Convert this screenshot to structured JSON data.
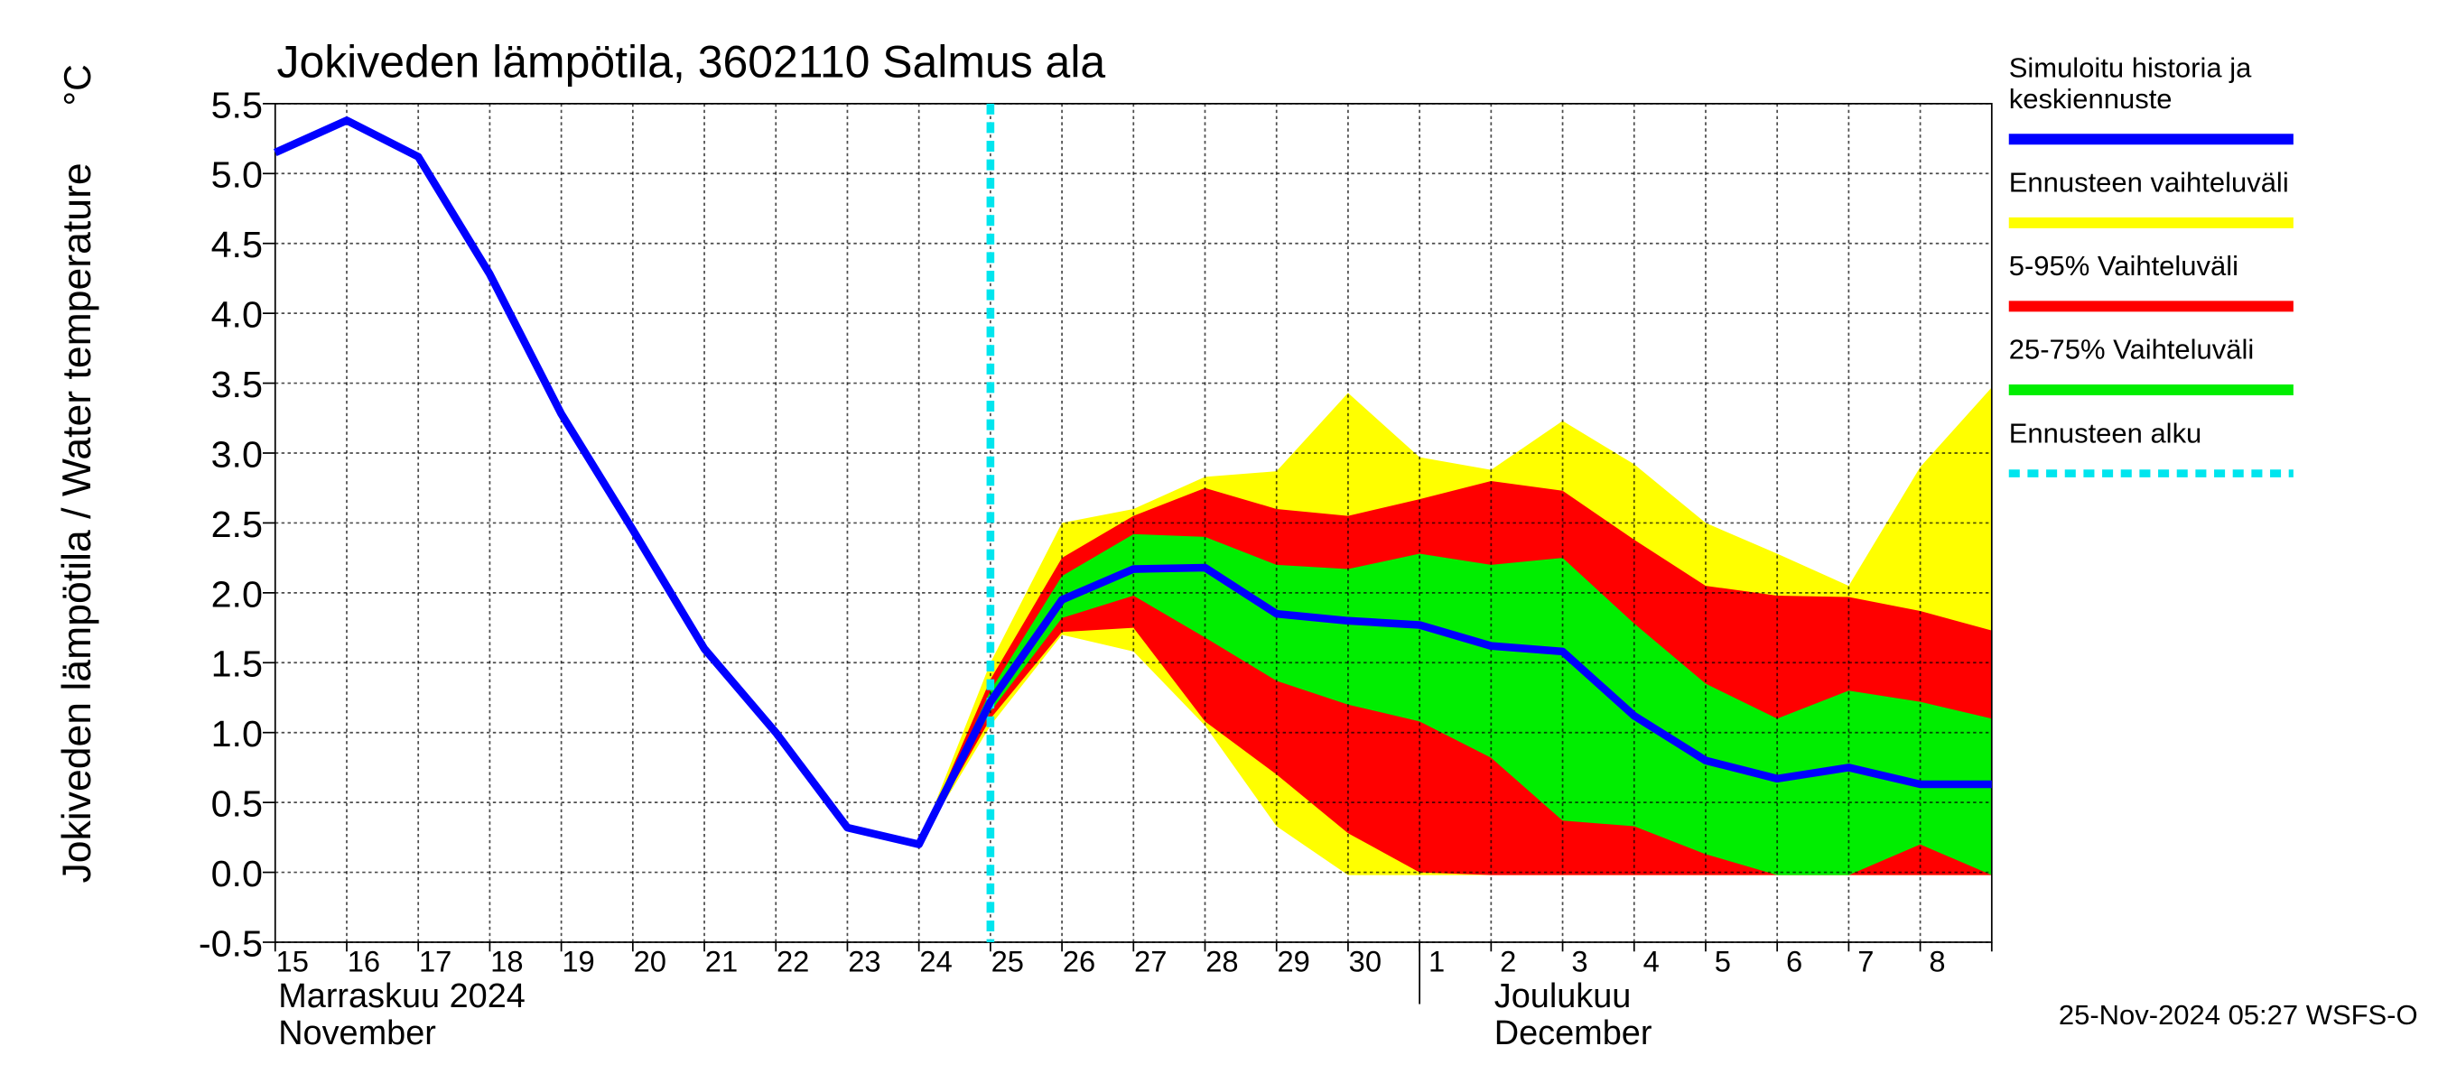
{
  "chart_data": {
    "type": "forecast-band",
    "title": "Jokiveden lämpötila, 3602110 Salmus ala",
    "y_label": "Jokiveden lämpötila / Water temperature",
    "y_unit": "°C",
    "timestamp": "25-Nov-2024 05:27 WSFS-O",
    "categories": [
      "15",
      "16",
      "17",
      "18",
      "19",
      "20",
      "21",
      "22",
      "23",
      "24",
      "25",
      "26",
      "27",
      "28",
      "29",
      "30",
      "1",
      "2",
      "3",
      "4",
      "5",
      "6",
      "7",
      "8",
      null
    ],
    "months": [
      [
        "Marraskuu 2024",
        "November"
      ],
      [
        "Joulukuu",
        "December"
      ]
    ],
    "ylim": [
      -0.5,
      5.5
    ],
    "yticks": [
      {
        "value": -0.5,
        "label": "-0.5"
      },
      {
        "value": 0,
        "label": "0.0"
      },
      {
        "value": 0.5,
        "label": "0.5"
      },
      {
        "value": 1,
        "label": "1.0"
      },
      {
        "value": 1.5,
        "label": "1.5"
      },
      {
        "value": 2,
        "label": "2.0"
      },
      {
        "value": 2.5,
        "label": "2.5"
      },
      {
        "value": 3,
        "label": "3.0"
      },
      {
        "value": 3.5,
        "label": "3.5"
      },
      {
        "value": 4,
        "label": "4.0"
      },
      {
        "value": 4.5,
        "label": "4.5"
      },
      {
        "value": 5,
        "label": "5.0"
      },
      {
        "value": 5.5,
        "label": "5.5"
      }
    ],
    "grid": true,
    "bands": [
      {
        "name": "Ennusteen vaihteluväli",
        "color": "#ffff00",
        "upper": [
          null,
          null,
          null,
          null,
          null,
          null,
          null,
          null,
          null,
          0.2,
          1.5,
          2.5,
          2.6,
          2.83,
          2.87,
          3.43,
          2.97,
          2.88,
          3.23,
          2.92,
          2.5,
          2.28,
          2.05,
          2.9,
          3.47
        ],
        "lower": [
          null,
          null,
          null,
          null,
          null,
          null,
          null,
          null,
          null,
          0.2,
          1.05,
          1.7,
          1.58,
          1.05,
          0.33,
          -0.02,
          -0.02,
          -0.02,
          -0.02,
          -0.02,
          -0.02,
          -0.02,
          -0.02,
          -0.02,
          -0.02
        ]
      },
      {
        "name": "5-95% Vaihteluväli",
        "color": "#ff0000",
        "upper": [
          null,
          null,
          null,
          null,
          null,
          null,
          null,
          null,
          null,
          0.2,
          1.38,
          2.25,
          2.55,
          2.75,
          2.6,
          2.55,
          2.67,
          2.8,
          2.73,
          2.38,
          2.05,
          1.98,
          1.97,
          1.87,
          1.73
        ],
        "lower": [
          null,
          null,
          null,
          null,
          null,
          null,
          null,
          null,
          null,
          0.2,
          1.1,
          1.72,
          1.75,
          1.08,
          0.7,
          0.28,
          0,
          -0.02,
          -0.02,
          -0.02,
          -0.02,
          -0.02,
          -0.02,
          -0.02,
          -0.02
        ]
      },
      {
        "name": "25-75% Vaihteluväli",
        "color": "#00ee00",
        "upper": [
          null,
          null,
          null,
          null,
          null,
          null,
          null,
          null,
          null,
          0.2,
          1.3,
          2.12,
          2.42,
          2.4,
          2.2,
          2.17,
          2.28,
          2.2,
          2.25,
          1.78,
          1.35,
          1.1,
          1.3,
          1.22,
          1.1
        ],
        "lower": [
          null,
          null,
          null,
          null,
          null,
          null,
          null,
          null,
          null,
          0.2,
          1.15,
          1.82,
          1.98,
          1.68,
          1.37,
          1.2,
          1.08,
          0.82,
          0.37,
          0.33,
          0.13,
          -0.02,
          -0.02,
          0.2,
          -0.02
        ]
      }
    ],
    "series": [
      {
        "name": "Simuloitu historia ja\nkeskiennuste",
        "color": "#0000ff",
        "values": [
          5.15,
          5.38,
          5.12,
          4.28,
          3.28,
          2.45,
          1.6,
          1.0,
          0.32,
          0.2,
          1.22,
          1.95,
          2.17,
          2.18,
          1.85,
          1.8,
          1.77,
          1.62,
          1.58,
          1.12,
          0.8,
          0.67,
          0.75,
          0.63,
          0.63
        ]
      }
    ],
    "forecast_start": {
      "name": "Ennusteen alku",
      "color": "#00e5ee",
      "index": 10
    }
  }
}
